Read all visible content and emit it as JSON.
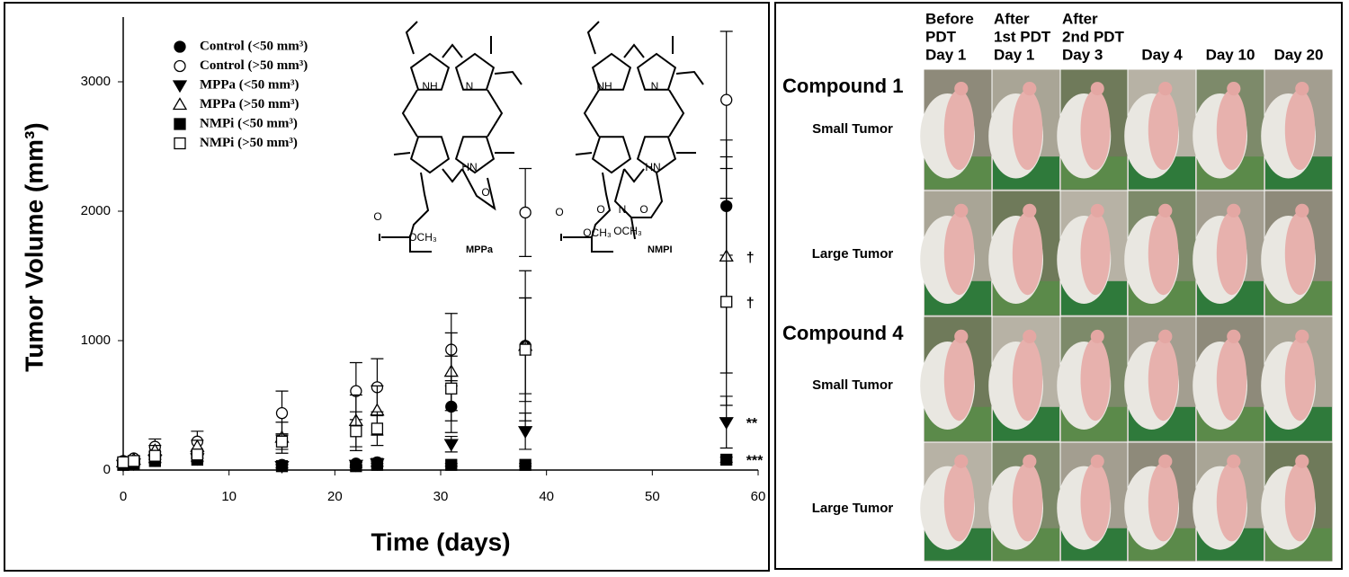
{
  "chart_data": {
    "type": "scatter",
    "xlabel": "Time (days)",
    "ylabel": "Tumor Volume (mm³)",
    "x": [
      0,
      1,
      3,
      7,
      15,
      22,
      24,
      31,
      38,
      57
    ],
    "xlim": [
      0,
      60
    ],
    "xticks": [
      0,
      10,
      20,
      30,
      40,
      50,
      60
    ],
    "ylim": [
      0,
      3500
    ],
    "yticks": [
      0,
      1000,
      2000,
      3000
    ],
    "grid": false,
    "legend": "upper left",
    "series": [
      {
        "name": "Control (<50 mm³)",
        "marker": "circle",
        "filled": true,
        "color": "#000000",
        "values": [
          50,
          60,
          90,
          100,
          40,
          50,
          60,
          490,
          960,
          2040
        ],
        "errors": [
          10,
          15,
          30,
          30,
          20,
          20,
          30,
          200,
          370,
          380
        ]
      },
      {
        "name": "Control (>50 mm³)",
        "marker": "circle",
        "filled": false,
        "color": "#000000",
        "values": [
          70,
          90,
          180,
          220,
          440,
          610,
          640,
          930,
          1990,
          2860
        ],
        "errors": [
          20,
          20,
          60,
          80,
          170,
          220,
          220,
          280,
          340,
          530
        ]
      },
      {
        "name": "MPPa (<50 mm³)",
        "marker": "triangle-down",
        "filled": true,
        "color": "#000000",
        "values": [
          40,
          50,
          80,
          90,
          30,
          40,
          50,
          200,
          300,
          370
        ],
        "errors": [
          10,
          15,
          20,
          20,
          15,
          20,
          20,
          60,
          140,
          200
        ]
      },
      {
        "name": "MPPa (>50 mm³)",
        "marker": "triangle-up",
        "filled": false,
        "color": "#000000",
        "values": [
          60,
          80,
          150,
          180,
          250,
          380,
          460,
          760,
          960,
          1650
        ],
        "errors": [
          15,
          20,
          40,
          50,
          120,
          200,
          190,
          300,
          580,
          900
        ]
      },
      {
        "name": "NMPi (<50 mm³)",
        "marker": "square",
        "filled": true,
        "color": "#000000",
        "values": [
          40,
          50,
          70,
          80,
          30,
          30,
          40,
          40,
          40,
          80
        ],
        "errors": [
          10,
          10,
          15,
          15,
          10,
          10,
          10,
          10,
          10,
          20
        ]
      },
      {
        "name": "NMPi (>50 mm³)",
        "marker": "square",
        "filled": false,
        "color": "#000000",
        "values": [
          60,
          70,
          110,
          120,
          220,
          300,
          320,
          630,
          930,
          1300
        ],
        "errors": [
          15,
          20,
          30,
          30,
          60,
          150,
          130,
          250,
          400,
          800
        ]
      }
    ],
    "annotations": [
      {
        "text": "†",
        "x": 57,
        "y": 1650
      },
      {
        "text": "†",
        "x": 57,
        "y": 1300
      },
      {
        "text": "**",
        "x": 57,
        "y": 370
      },
      {
        "text": "***",
        "x": 57,
        "y": 80
      }
    ],
    "structures": [
      {
        "name": "MPPa",
        "labels": [
          "NH",
          "N",
          "HN",
          "O",
          "O",
          "OCH₃"
        ]
      },
      {
        "name": "NMPI",
        "labels": [
          "NH",
          "N",
          "HN",
          "O",
          "N",
          "O",
          "O",
          "OCH₃",
          "OCH₃"
        ]
      }
    ]
  },
  "photo_panel": {
    "columns": [
      [
        "Before",
        "PDT",
        "Day 1"
      ],
      [
        "After",
        "1st PDT",
        "Day 1"
      ],
      [
        "After",
        "2nd PDT",
        "Day 3"
      ],
      [
        "Day 4"
      ],
      [
        "Day 10"
      ],
      [
        "Day 20"
      ]
    ],
    "groups": [
      {
        "name": "Compound 1",
        "rows": [
          "Small Tumor",
          "Large Tumor"
        ]
      },
      {
        "name": "Compound 4",
        "rows": [
          "Small Tumor",
          "Large Tumor"
        ]
      }
    ]
  }
}
